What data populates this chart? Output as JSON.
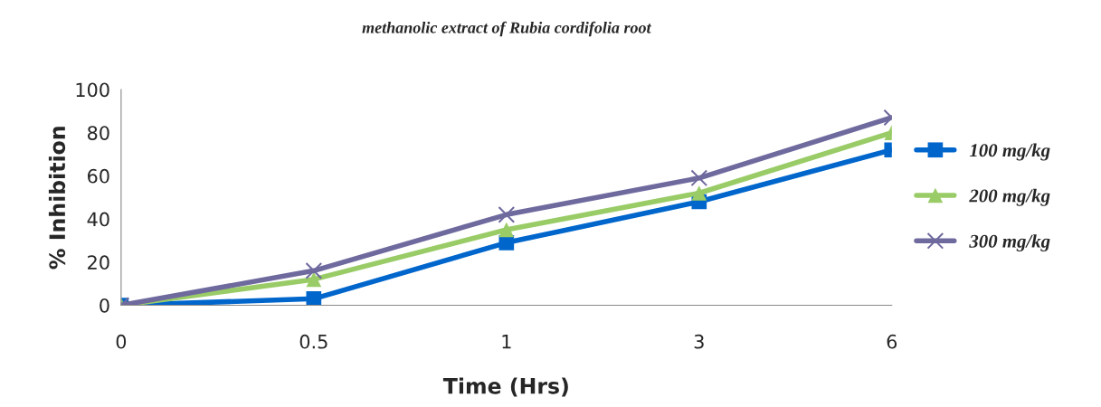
{
  "chart_data": {
    "type": "line",
    "title": "methanolic extract of Rubia cordifolia root",
    "xlabel": "Time (Hrs)",
    "ylabel": "% Inhibition",
    "categories": [
      "0",
      "0.5",
      "1",
      "3",
      "6"
    ],
    "series": [
      {
        "name": "100 mg/kg",
        "color": "#0066cc",
        "marker": "square",
        "values": [
          0,
          3,
          29,
          48,
          72
        ]
      },
      {
        "name": "200 mg/kg",
        "color": "#99cc66",
        "marker": "triangle",
        "values": [
          0,
          12,
          35,
          52,
          80
        ]
      },
      {
        "name": "300 mg/kg",
        "color": "#6f6a9e",
        "marker": "cross",
        "values": [
          0,
          16,
          42,
          59,
          87
        ]
      }
    ],
    "ylim": [
      0,
      100
    ],
    "yticks": [
      0,
      20,
      40,
      60,
      80,
      100
    ],
    "grid": false,
    "legend": "right",
    "line_style": "solid"
  }
}
